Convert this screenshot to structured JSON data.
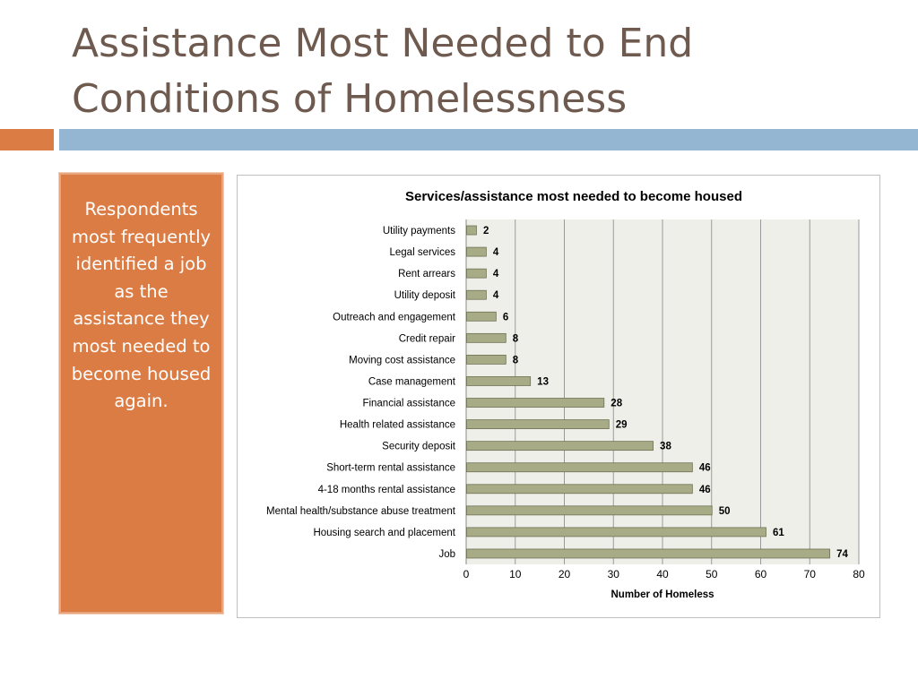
{
  "slide": {
    "title_line1": "Assistance Most Needed to End",
    "title_line2": "Conditions of Homelessness"
  },
  "callout": {
    "text": "Respondents most frequently identified a job as the assistance they most needed to become housed again."
  },
  "colors": {
    "title": "#6e5a4f",
    "accent_orange": "#dc7c45",
    "accent_blue": "#94b6d2",
    "plot_background": "#efefea",
    "bar_fill": "#a8ac86",
    "bar_stroke": "#6e7252"
  },
  "chart_data": {
    "type": "bar",
    "orientation": "horizontal",
    "title": "Services/assistance most needed to become housed",
    "xlabel": "Number of Homeless",
    "ylabel": "",
    "xlim": [
      0,
      80
    ],
    "xticks": [
      0,
      10,
      20,
      30,
      40,
      50,
      60,
      70,
      80
    ],
    "grid": "vertical",
    "legend": "none",
    "categories": [
      "Utility payments",
      "Legal services",
      "Rent arrears",
      "Utility deposit",
      "Outreach and engagement",
      "Credit repair",
      "Moving cost assistance",
      "Case management",
      "Financial assistance",
      "Health related assistance",
      "Security deposit",
      "Short-term rental assistance",
      "4-18 months rental assistance",
      "Mental health/substance abuse treatment",
      "Housing search and placement",
      "Job"
    ],
    "values": [
      2,
      4,
      4,
      4,
      6,
      8,
      8,
      13,
      28,
      29,
      38,
      46,
      46,
      50,
      61,
      74
    ]
  }
}
